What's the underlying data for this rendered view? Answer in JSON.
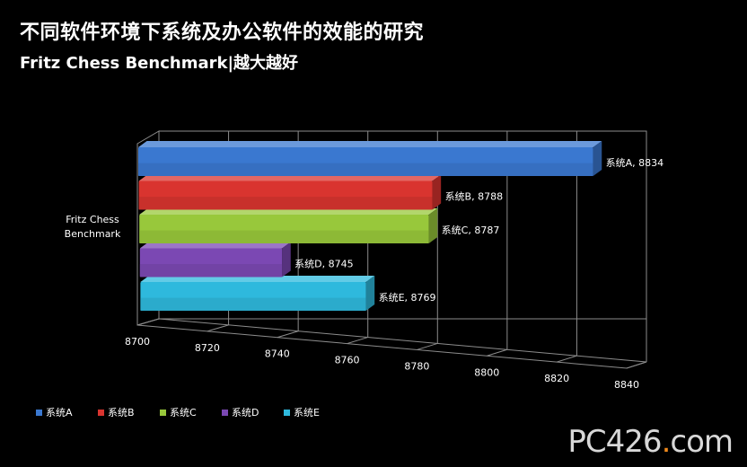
{
  "title": "不同软件环境下系统及办公软件的效能的研究",
  "subtitle": "Fritz Chess Benchmark|越大越好",
  "watermark": {
    "text": "PC426.com",
    "accent": "#f08a1c"
  },
  "chart_data": {
    "type": "bar",
    "orientation": "horizontal",
    "style": "3d",
    "categories": [
      "Fritz Chess\nBenchmark"
    ],
    "xlim": [
      8700,
      8840
    ],
    "xticks": [
      8700,
      8720,
      8740,
      8760,
      8780,
      8800,
      8820,
      8840
    ],
    "grid": true,
    "legend": "bottom-left",
    "series": [
      {
        "name": "系统A",
        "values": [
          8834
        ],
        "label": "系统A, 8834",
        "color": "#3a78d0"
      },
      {
        "name": "系统B",
        "values": [
          8788
        ],
        "label": "系统B, 8788",
        "color": "#d9342f"
      },
      {
        "name": "系统C",
        "values": [
          8787
        ],
        "label": "系统C, 8787",
        "color": "#98c83b"
      },
      {
        "name": "系统D",
        "values": [
          8745
        ],
        "label": "系统D, 8745",
        "color": "#7b48b3"
      },
      {
        "name": "系统E",
        "values": [
          8769
        ],
        "label": "系统E, 8769",
        "color": "#2eb9dd"
      }
    ]
  }
}
